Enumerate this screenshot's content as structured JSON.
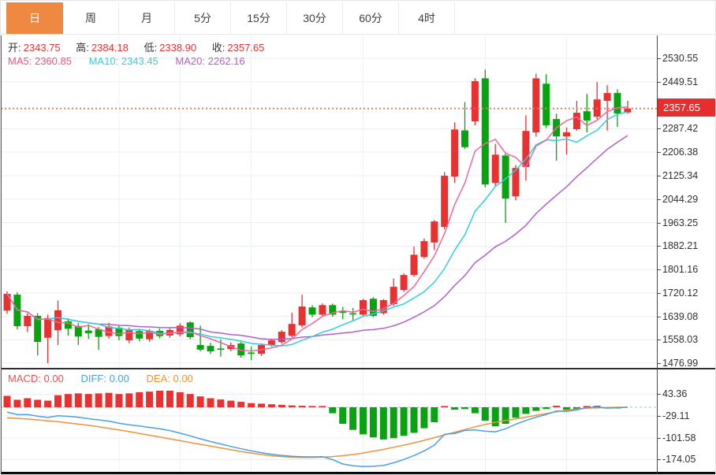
{
  "tabs": {
    "items": [
      {
        "label": "日",
        "active": true
      },
      {
        "label": "周",
        "active": false
      },
      {
        "label": "月",
        "active": false
      },
      {
        "label": "5分",
        "active": false
      },
      {
        "label": "15分",
        "active": false
      },
      {
        "label": "30分",
        "active": false
      },
      {
        "label": "60分",
        "active": false
      },
      {
        "label": "4时",
        "active": false
      }
    ]
  },
  "ohlc_legend": {
    "open_label": "开:",
    "open_value": "2343.75",
    "high_label": "高:",
    "high_value": "2384.18",
    "low_label": "低:",
    "low_value": "2338.90",
    "close_label": "收:",
    "close_value": "2357.65"
  },
  "ma_legend": {
    "ma5_label": "MA5:",
    "ma5_value": "2360.85",
    "ma10_label": "MA10:",
    "ma10_value": "2343.45",
    "ma20_label": "MA20:",
    "ma20_value": "2262.16"
  },
  "macd_legend": {
    "macd_label": "MACD:",
    "macd_value": "0.00",
    "diff_label": "DIFF:",
    "diff_value": "0.00",
    "dea_label": "DEA:",
    "dea_value": "0.00"
  },
  "price_axis": {
    "tick_labels": [
      "2530.55",
      "2449.51",
      "2287.42",
      "2206.38",
      "2125.34",
      "2044.29",
      "1963.25",
      "1882.21",
      "1801.16",
      "1720.12",
      "1639.08",
      "1558.03",
      "1476.99"
    ],
    "current_price_label": "2357.65"
  },
  "macd_axis": {
    "tick_labels": [
      "43.36",
      "-29.11",
      "-101.58",
      "-174.05"
    ]
  },
  "colors": {
    "accent_tab": "#ef8942",
    "up_candle": "#e83232",
    "down_candle": "#09a311",
    "ma5_line": "#f0679a",
    "ma10_line": "#2ed0e0",
    "ma20_line": "#b25fc8",
    "diff_line": "#4aa0e8",
    "dea_line": "#f0913c",
    "price_tag_bg": "#e62e2e",
    "dotted_price_line": "#f07268",
    "grid_h": "#e8edf3",
    "grid_v": "#edf0f5",
    "zero_dash_line": "#9ed2e6"
  },
  "chart_data": {
    "type": "candlestick",
    "interval_selected": "日",
    "title": "",
    "price_y_range": [
      1455.5,
      2610
    ],
    "price_ticks": [
      2530.55,
      2449.51,
      2287.42,
      2206.38,
      2125.34,
      2044.29,
      1963.25,
      1882.21,
      1801.16,
      1720.12,
      1639.08,
      1558.03,
      1476.99
    ],
    "current_price": 2357.65,
    "current_bar": {
      "open": 2343.75,
      "high": 2384.18,
      "low": 2338.9,
      "close": 2357.65
    },
    "ma_windows": [
      5,
      10,
      20
    ],
    "ma_current_values": {
      "MA5": 2360.85,
      "MA10": 2343.45,
      "MA20": 2262.16
    },
    "candles_format": [
      "open",
      "high",
      "low",
      "close"
    ],
    "candles": [
      [
        1659,
        1725,
        1648,
        1717
      ],
      [
        1714,
        1722,
        1594,
        1605
      ],
      [
        1605,
        1650,
        1585,
        1641
      ],
      [
        1641,
        1650,
        1504,
        1551
      ],
      [
        1565,
        1645,
        1477,
        1633
      ],
      [
        1591,
        1694,
        1540,
        1660
      ],
      [
        1622,
        1632,
        1572,
        1596
      ],
      [
        1606,
        1616,
        1540,
        1569
      ],
      [
        1590,
        1612,
        1561,
        1581
      ],
      [
        1595,
        1602,
        1523,
        1568
      ],
      [
        1571,
        1617,
        1562,
        1604
      ],
      [
        1600,
        1609,
        1556,
        1571
      ],
      [
        1556,
        1601,
        1546,
        1592
      ],
      [
        1588,
        1596,
        1553,
        1562
      ],
      [
        1560,
        1595,
        1551,
        1589
      ],
      [
        1589,
        1597,
        1563,
        1571
      ],
      [
        1573,
        1598,
        1565,
        1592
      ],
      [
        1577,
        1615,
        1570,
        1607
      ],
      [
        1618,
        1622,
        1560,
        1567
      ],
      [
        1540,
        1607,
        1518,
        1524
      ],
      [
        1537,
        1548,
        1509,
        1518
      ],
      [
        1528,
        1560,
        1500,
        1524
      ],
      [
        1526,
        1549,
        1519,
        1540
      ],
      [
        1545,
        1551,
        1496,
        1504
      ],
      [
        1514,
        1535,
        1488,
        1510
      ],
      [
        1510,
        1546,
        1502,
        1540
      ],
      [
        1540,
        1562,
        1534,
        1556
      ],
      [
        1550,
        1592,
        1544,
        1586
      ],
      [
        1572,
        1652,
        1566,
        1613
      ],
      [
        1608,
        1714,
        1600,
        1673
      ],
      [
        1670,
        1678,
        1636,
        1645
      ],
      [
        1645,
        1684,
        1639,
        1678
      ],
      [
        1678,
        1683,
        1638,
        1645
      ],
      [
        1656,
        1672,
        1629,
        1652
      ],
      [
        1650,
        1668,
        1626,
        1646
      ],
      [
        1645,
        1700,
        1640,
        1695
      ],
      [
        1700,
        1706,
        1636,
        1641
      ],
      [
        1650,
        1699,
        1645,
        1695
      ],
      [
        1681,
        1770,
        1675,
        1741
      ],
      [
        1730,
        1788,
        1724,
        1782
      ],
      [
        1782,
        1880,
        1776,
        1852
      ],
      [
        1844,
        1908,
        1838,
        1899
      ],
      [
        1894,
        1972,
        1868,
        1967
      ],
      [
        1948,
        2138,
        1940,
        2125
      ],
      [
        2122,
        2310,
        2100,
        2285
      ],
      [
        2282,
        2380,
        2218,
        2224
      ],
      [
        2313,
        2462,
        2300,
        2452
      ],
      [
        2462,
        2492,
        2085,
        2095
      ],
      [
        2100,
        2235,
        2088,
        2198
      ],
      [
        2195,
        2205,
        1962,
        2046
      ],
      [
        2054,
        2162,
        2040,
        2152
      ],
      [
        2155,
        2334,
        2108,
        2280
      ],
      [
        2275,
        2478,
        2260,
        2462
      ],
      [
        2443,
        2476,
        2290,
        2299
      ],
      [
        2321,
        2340,
        2177,
        2261
      ],
      [
        2261,
        2292,
        2198,
        2275
      ],
      [
        2286,
        2384,
        2280,
        2343
      ],
      [
        2348,
        2408,
        2275,
        2316
      ],
      [
        2329,
        2449,
        2320,
        2389
      ],
      [
        2384,
        2438,
        2281,
        2411
      ],
      [
        2411,
        2424,
        2294,
        2340
      ],
      [
        2343.75,
        2384.18,
        2338.9,
        2357.65
      ]
    ],
    "indicator": {
      "name": "MACD",
      "current": {
        "macd": 0.0,
        "diff": 0.0,
        "dea": 0.0
      },
      "axis_ticks": [
        43.36,
        -29.11,
        -101.58,
        -174.05
      ],
      "y_range": [
        -220,
        126
      ],
      "histogram": [
        38,
        25,
        30,
        25,
        22,
        40,
        44,
        46,
        44,
        46,
        48,
        44,
        46,
        50,
        52,
        55,
        55,
        50,
        44,
        36,
        30,
        26,
        22,
        18,
        14,
        12,
        10,
        8,
        6,
        5,
        4,
        3,
        -20,
        -55,
        -75,
        -90,
        -100,
        -107,
        -103,
        -95,
        -85,
        -70,
        -50,
        4,
        -8,
        -6,
        -20,
        -45,
        -63,
        -55,
        -35,
        -22,
        -12,
        -6,
        5,
        -8,
        -6,
        4,
        5,
        -4,
        -3,
        0
      ],
      "diff": [
        -16,
        -24.5,
        -24,
        -29.5,
        -34,
        -28,
        -30,
        -33,
        -38,
        -42,
        -46,
        -53,
        -58,
        -62,
        -67,
        -71.5,
        -77.5,
        -86,
        -95,
        -105,
        -114,
        -122,
        -130,
        -138,
        -145,
        -151,
        -156,
        -160,
        -163,
        -164.5,
        -165,
        -164.5,
        -174,
        -188.5,
        -194.5,
        -197,
        -196,
        -193.5,
        -184.5,
        -173.5,
        -160.5,
        -145,
        -126,
        -90,
        -87,
        -77,
        -75,
        -79.5,
        -81.5,
        -71.5,
        -56.5,
        -44,
        -33,
        -24,
        -12.5,
        -14,
        -9,
        -1,
        0.5,
        -3,
        -1.5,
        0
      ],
      "dea": [
        -35,
        -37,
        -39,
        -42,
        -45,
        -48,
        -52,
        -56,
        -60,
        -65,
        -70,
        -75,
        -81,
        -87,
        -93,
        -99,
        -105,
        -111,
        -117,
        -123,
        -129,
        -135,
        -141,
        -147,
        -152,
        -157,
        -161,
        -164,
        -166,
        -167,
        -167,
        -166,
        -164,
        -161,
        -157,
        -152,
        -146,
        -140,
        -133,
        -126,
        -118,
        -110,
        -101,
        -92,
        -83,
        -74,
        -65,
        -57,
        -50,
        -44,
        -39,
        -33,
        -27,
        -21,
        -15,
        -10,
        -6,
        -3,
        -2,
        -1,
        0,
        0
      ]
    }
  }
}
